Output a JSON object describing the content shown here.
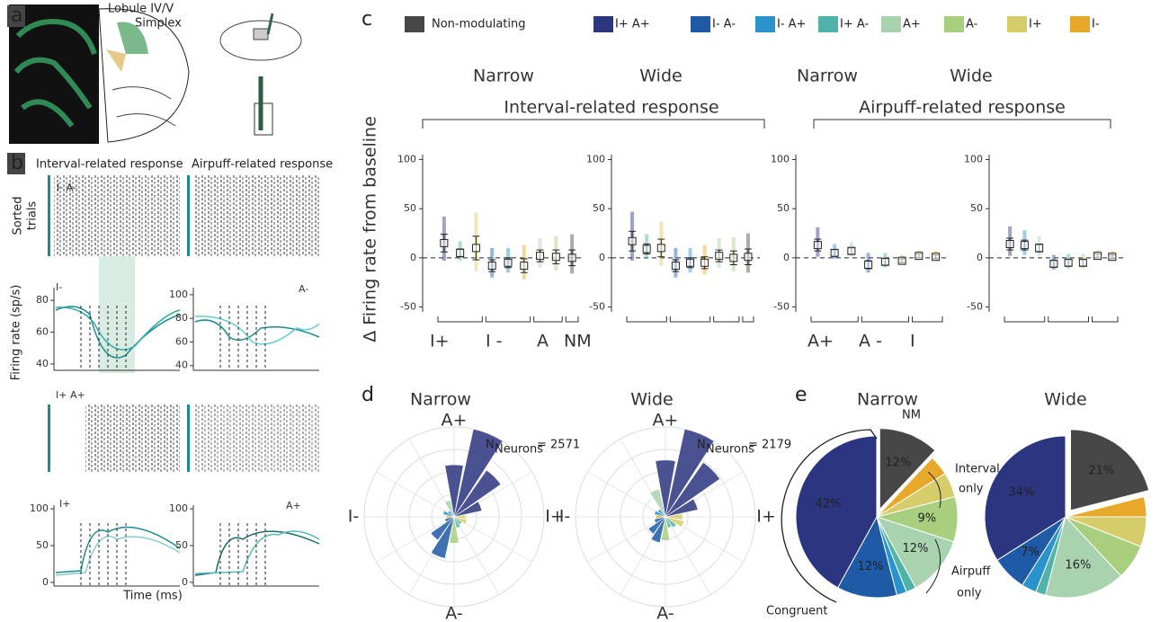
{
  "panel_labels": [
    "a",
    "b",
    "c",
    "d",
    "e"
  ],
  "panel_a": {
    "labels": [
      "Lobule IV/V",
      "Simplex"
    ]
  },
  "panel_b": {
    "titles": [
      "Interval-related response",
      "Airpuff-related response"
    ],
    "raster_label": [
      "Sorted",
      "trials"
    ],
    "ylabel": "Firing rate (sp/s)",
    "xlabel": "Time (ms)",
    "trace_labels": [
      "I- A-",
      "I-",
      "A-",
      "I+ A+",
      "I+",
      "A+"
    ],
    "plots": [
      {
        "ylim": [
          36,
          88
        ],
        "yticks": [
          80,
          60,
          40
        ]
      },
      {
        "ylim": [
          36,
          106
        ],
        "yticks": [
          100,
          80,
          60,
          40
        ]
      },
      {
        "ylim": [
          -5,
          105
        ],
        "yticks": [
          100,
          50,
          0
        ]
      },
      {
        "ylim": [
          -5,
          105
        ],
        "yticks": [
          100,
          50,
          0
        ]
      }
    ]
  },
  "panel_c": {
    "legend": [
      {
        "name": "Non-modulating",
        "color": "#474747"
      },
      {
        "name": "I+ A+",
        "color": "#2b3580"
      },
      {
        "name": "I- A-",
        "color": "#1f5aa6"
      },
      {
        "name": "I- A+",
        "color": "#2a92cc"
      },
      {
        "name": "I+ A-",
        "color": "#4fb3aa"
      },
      {
        "name": "A+",
        "color": "#a9d3ae"
      },
      {
        "name": "A-",
        "color": "#a7cf7e"
      },
      {
        "name": "I+",
        "color": "#d6cd6a"
      },
      {
        "name": "I-",
        "color": "#e8a92a"
      }
    ],
    "ylabel": "Δ Firing rate from baseline",
    "column_titles": [
      "Narrow",
      "Wide",
      "Narrow",
      "Wide"
    ],
    "group_titles": [
      "Interval-related response",
      "Airpuff-related response"
    ],
    "group_labels_interval": [
      "I+",
      "I -",
      "A",
      "NM"
    ],
    "group_labels_airpuff": [
      "A+",
      "A -",
      "I"
    ]
  },
  "panel_d": {
    "titles": [
      "Narrow",
      "Wide"
    ],
    "axis_labels": [
      "A+",
      "A-",
      "I-",
      "I+"
    ],
    "n_label": "N",
    "n_sub": "Neurons",
    "n_texts": [
      "= 2571",
      "= 2179"
    ]
  },
  "panel_e": {
    "titles": [
      "Narrow",
      "Wide"
    ],
    "annotations": [
      "NM",
      "Interval",
      "only",
      "Airpuff",
      "only",
      "Congruent"
    ]
  },
  "chart_data": [
    {
      "type": "dot",
      "ylim": [
        -55,
        105
      ],
      "yticks": [
        100,
        50,
        0,
        -50
      ],
      "values": [
        15,
        5,
        10,
        -8,
        -5,
        -8,
        2,
        1,
        0
      ],
      "errors": [
        9,
        4,
        12,
        6,
        5,
        7,
        6,
        7,
        8
      ],
      "colors": [
        "#2b3580",
        "#4fb3aa",
        "#d6cd6a",
        "#1f5aa6",
        "#2a92cc",
        "#e8a92a",
        "#a9d3ae",
        "#a7cf7e",
        "#474747"
      ]
    },
    {
      "type": "dot",
      "ylim": [
        -55,
        105
      ],
      "yticks": [
        100,
        50,
        0,
        -50
      ],
      "values": [
        17,
        9,
        10,
        -8,
        -5,
        -5,
        2,
        0,
        1
      ],
      "errors": [
        10,
        5,
        9,
        6,
        5,
        6,
        6,
        7,
        8
      ],
      "colors": [
        "#2b3580",
        "#4fb3aa",
        "#d6cd6a",
        "#1f5aa6",
        "#2a92cc",
        "#e8a92a",
        "#a9d3ae",
        "#a7cf7e",
        "#474747"
      ]
    },
    {
      "type": "dot",
      "ylim": [
        -55,
        105
      ],
      "yticks": [
        100,
        50,
        0,
        -50
      ],
      "values": [
        13,
        5,
        7,
        -7,
        -4,
        -3,
        2,
        1
      ],
      "errors": [
        6,
        3,
        3,
        4,
        3,
        2,
        2,
        2
      ],
      "colors": [
        "#2b3580",
        "#2a92cc",
        "#a9d3ae",
        "#1f5aa6",
        "#4fb3aa",
        "#a7cf7e",
        "#d6cd6a",
        "#e8a92a"
      ]
    },
    {
      "type": "dot",
      "ylim": [
        -55,
        105
      ],
      "yticks": [
        100,
        50,
        0,
        -50
      ],
      "values": [
        14,
        13,
        10,
        -6,
        -5,
        -5,
        2,
        1
      ],
      "errors": [
        6,
        5,
        4,
        3,
        3,
        3,
        2,
        2
      ],
      "colors": [
        "#2b3580",
        "#2a92cc",
        "#a9d3ae",
        "#1f5aa6",
        "#4fb3aa",
        "#a7cf7e",
        "#d6cd6a",
        "#e8a92a"
      ]
    },
    {
      "type": "polar",
      "values": [
        12,
        30,
        60,
        95,
        55,
        18,
        8,
        12,
        8,
        10,
        30,
        45,
        28,
        12,
        10,
        14
      ],
      "colors": [
        "#d6cd6a",
        "#2b3580",
        "#2b3580",
        "#2b3580",
        "#2b3580",
        "#a9d3ae",
        "#2a92cc",
        "#2a92cc",
        "#e8a92a",
        "#1f5aa6",
        "#1f5aa6",
        "#1f5aa6",
        "#a7cf7e",
        "#4fb3aa",
        "#4fb3aa",
        "#d6cd6a"
      ]
    },
    {
      "type": "polar",
      "values": [
        18,
        35,
        70,
        95,
        60,
        30,
        10,
        12,
        10,
        12,
        22,
        28,
        25,
        12,
        14,
        20
      ],
      "colors": [
        "#d6cd6a",
        "#2b3580",
        "#2b3580",
        "#2b3580",
        "#2b3580",
        "#a9d3ae",
        "#2a92cc",
        "#2a92cc",
        "#e8a92a",
        "#1f5aa6",
        "#1f5aa6",
        "#1f5aa6",
        "#a7cf7e",
        "#4fb3aa",
        "#4fb3aa",
        "#d6cd6a"
      ]
    },
    {
      "type": "pie",
      "explode": 0,
      "values": [
        12,
        4,
        5,
        9,
        12,
        2,
        2,
        12,
        42
      ],
      "value_labels": [
        "12%",
        null,
        null,
        "9%",
        "12%",
        null,
        null,
        "12%",
        "42%"
      ],
      "colors": [
        "#474747",
        "#e8a92a",
        "#d6cd6a",
        "#a7cf7e",
        "#a9d3ae",
        "#4fb3aa",
        "#2a92cc",
        "#1f5aa6",
        "#2b3580"
      ]
    },
    {
      "type": "pie",
      "explode": 0,
      "values": [
        21,
        4,
        6,
        7,
        16,
        2,
        3,
        7,
        34
      ],
      "value_labels": [
        "21%",
        null,
        null,
        null,
        "16%",
        null,
        null,
        "7%",
        "34%"
      ],
      "colors": [
        "#474747",
        "#e8a92a",
        "#d6cd6a",
        "#a7cf7e",
        "#a9d3ae",
        "#4fb3aa",
        "#2a92cc",
        "#1f5aa6",
        "#2b3580"
      ]
    }
  ]
}
